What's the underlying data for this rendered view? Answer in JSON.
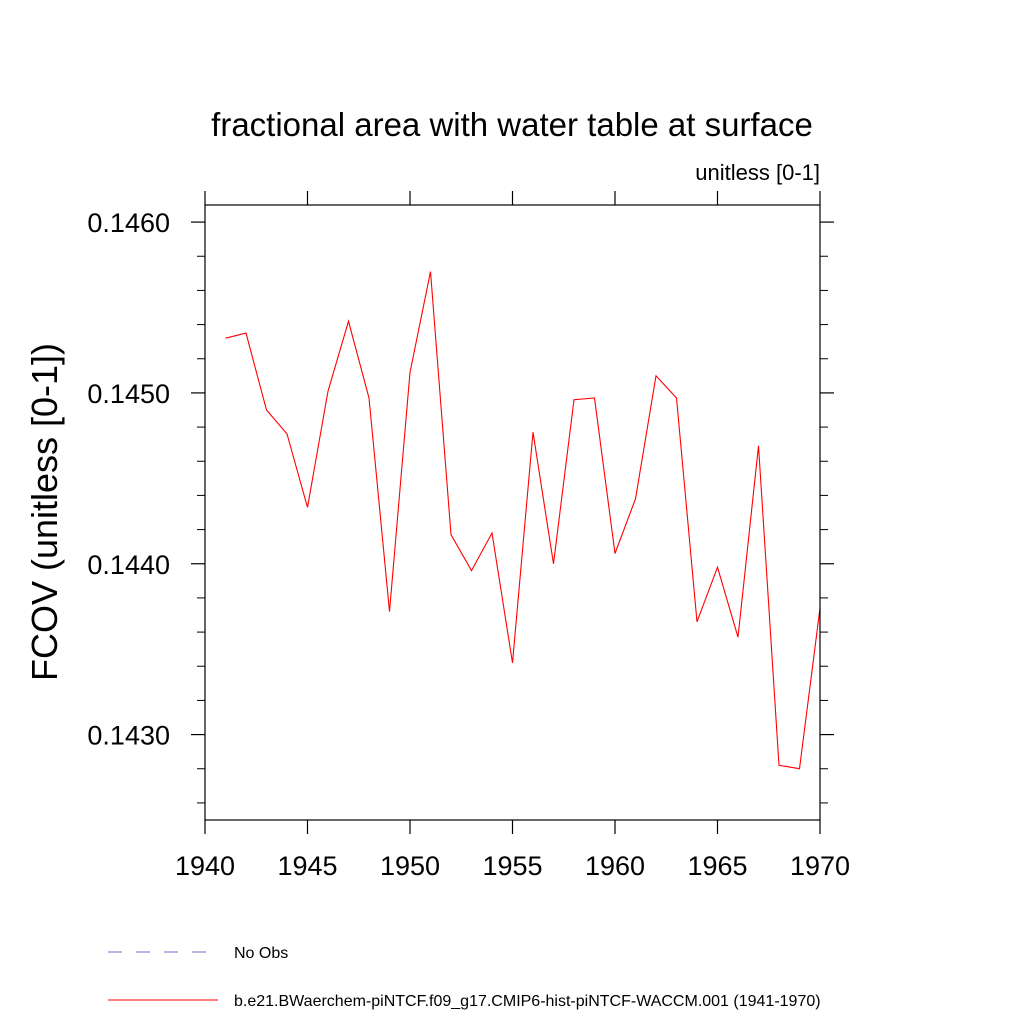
{
  "chart_data": {
    "type": "line",
    "title": "fractional area with water table at surface",
    "subtitle": "unitless [0-1]",
    "xlabel": "",
    "ylabel": "FCOV  (unitless [0-1])",
    "xlim": [
      1940,
      1970
    ],
    "ylim": [
      0.1425,
      0.1461
    ],
    "x_ticks": [
      1940,
      1945,
      1950,
      1955,
      1960,
      1965,
      1970
    ],
    "x_tick_labels": [
      "1940",
      "1945",
      "1950",
      "1955",
      "1960",
      "1965",
      "1970"
    ],
    "y_ticks": [
      0.143,
      0.144,
      0.145,
      0.146
    ],
    "y_tick_labels": [
      "0.1430",
      "0.1440",
      "0.1450",
      "0.1460"
    ],
    "grid": false,
    "legend_position": "bottom-left",
    "series": [
      {
        "name": "b.e21.BWaerchem-piNTCF.f09_g17.CMIP6-hist-piNTCF-WACCM.001 (1941-1970)",
        "color": "#ff0000",
        "style": "solid",
        "x": [
          1941,
          1942,
          1943,
          1944,
          1945,
          1946,
          1947,
          1948,
          1949,
          1950,
          1951,
          1952,
          1953,
          1954,
          1955,
          1956,
          1957,
          1958,
          1959,
          1960,
          1961,
          1962,
          1963,
          1964,
          1965,
          1966,
          1967,
          1968,
          1969,
          1970
        ],
        "values": [
          0.14532,
          0.14535,
          0.1449,
          0.14476,
          0.14433,
          0.14501,
          0.14542,
          0.14497,
          0.14372,
          0.14512,
          0.14571,
          0.14417,
          0.14396,
          0.14418,
          0.14342,
          0.14477,
          0.144,
          0.14496,
          0.14497,
          0.14406,
          0.14438,
          0.1451,
          0.14497,
          0.14366,
          0.14398,
          0.14357,
          0.14469,
          0.14282,
          0.1428,
          0.14374
        ]
      }
    ],
    "legend": [
      {
        "label": "No Obs",
        "color": "#7b68c8",
        "style": "dashed"
      },
      {
        "label": "b.e21.BWaerchem-piNTCF.f09_g17.CMIP6-hist-piNTCF-WACCM.001 (1941-1970)",
        "color": "#ff0000",
        "style": "solid"
      }
    ]
  }
}
